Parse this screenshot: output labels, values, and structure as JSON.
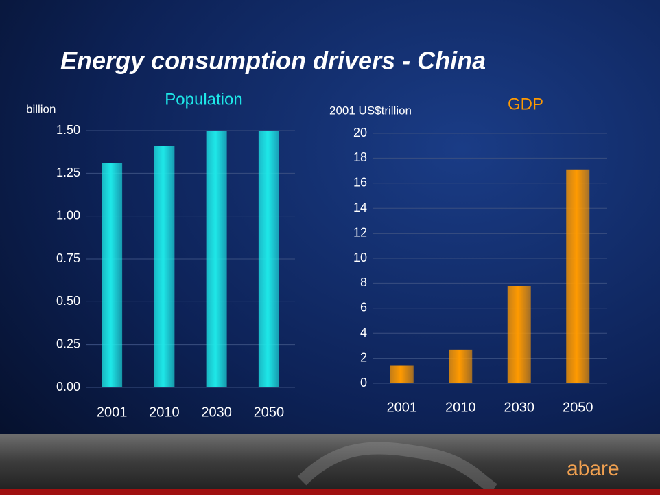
{
  "title": "Energy consumption drivers - China",
  "logo": "abare",
  "chart_data": [
    {
      "type": "bar",
      "title": "Population",
      "y_label": "billion",
      "categories": [
        "2001",
        "2010",
        "2030",
        "2050"
      ],
      "values": [
        1.31,
        1.41,
        1.5,
        1.5
      ],
      "color": "#1ee8e8",
      "ylim": [
        0,
        1.5
      ],
      "yticks": [
        {
          "value": 0,
          "label": "0.00"
        },
        0.25,
        {
          "value": 0.5,
          "label": "0.50"
        },
        0.75,
        {
          "value": 1,
          "label": "1.00"
        },
        1.25,
        {
          "value": 1.5,
          "label": "1.50"
        }
      ],
      "grid": true
    },
    {
      "type": "bar",
      "title": "GDP",
      "y_label": "2001 US$trillion",
      "categories": [
        "2001",
        "2010",
        "2030",
        "2050"
      ],
      "values": [
        1.4,
        2.7,
        7.8,
        17.1
      ],
      "color": "#ff9a00",
      "ylim": [
        0,
        20
      ],
      "yticks": [
        0,
        2,
        4,
        6,
        8,
        10,
        12,
        14,
        16,
        18,
        20
      ],
      "grid": true
    }
  ]
}
